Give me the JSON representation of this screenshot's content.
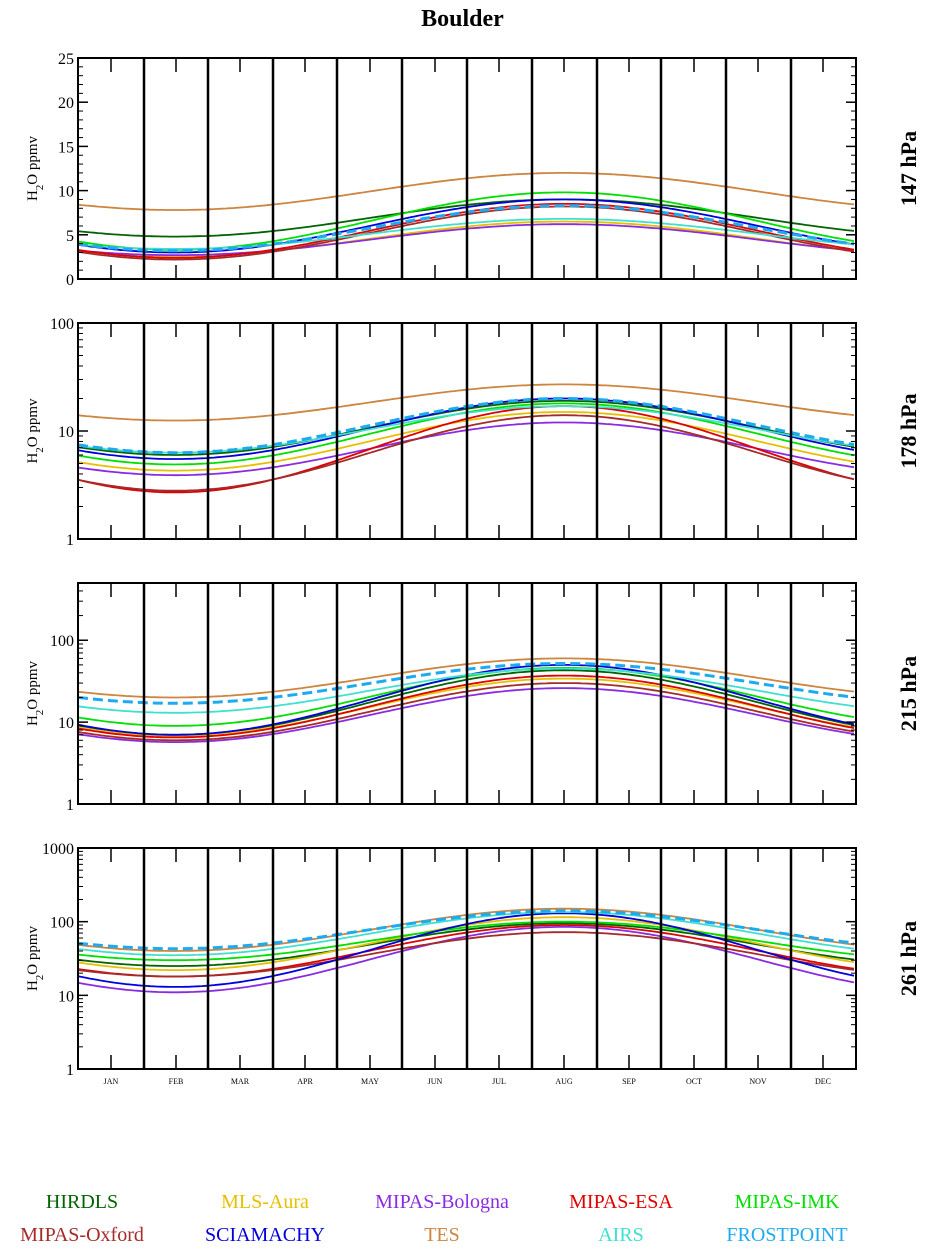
{
  "title": "Boulder",
  "months": [
    "JAN",
    "FEB",
    "MAR",
    "APR",
    "MAY",
    "JUN",
    "JUL",
    "AUG",
    "SEP",
    "OCT",
    "NOV",
    "DEC"
  ],
  "legend": [
    {
      "name": "HIRDLS",
      "color": "#006400"
    },
    {
      "name": "MLS-Aura",
      "color": "#e6c000"
    },
    {
      "name": "MIPAS-Bologna",
      "color": "#8a2be2"
    },
    {
      "name": "MIPAS-ESA",
      "color": "#e00000"
    },
    {
      "name": "MIPAS-IMK",
      "color": "#00e000"
    },
    {
      "name": "MIPAS-Oxford",
      "color": "#a52a2a"
    },
    {
      "name": "SCIAMACHY",
      "color": "#0000dd"
    },
    {
      "name": "TES",
      "color": "#cd853f"
    },
    {
      "name": "AIRS",
      "color": "#40e0d0"
    },
    {
      "name": "FROSTPOINT",
      "color": "#1eaaf0"
    }
  ],
  "chart_data": [
    {
      "type": "line",
      "pressure_label": "147 hPa",
      "ylabel": "H2O ppmv",
      "yscale": "linear",
      "ylim": [
        0,
        25
      ],
      "yticks": [
        "0",
        "5",
        "10",
        "15",
        "20",
        "25"
      ],
      "series": [
        {
          "name": "HIRDLS",
          "min": 4.8,
          "max": 9.0
        },
        {
          "name": "MLS-Aura",
          "min": 2.6,
          "max": 6.5
        },
        {
          "name": "MIPAS-Bologna",
          "min": 2.7,
          "max": 6.2
        },
        {
          "name": "MIPAS-ESA",
          "min": 2.4,
          "max": 8.5
        },
        {
          "name": "MIPAS-IMK",
          "min": 3.3,
          "max": 9.8
        },
        {
          "name": "MIPAS-Oxford",
          "min": 2.2,
          "max": 8.2
        },
        {
          "name": "SCIAMACHY",
          "min": 3.0,
          "max": 9.0
        },
        {
          "name": "TES",
          "min": 7.8,
          "max": 12.0
        },
        {
          "name": "AIRS",
          "min": 3.4,
          "max": 6.8
        },
        {
          "name": "FROSTPOINT",
          "min": 3.2,
          "max": 8.3
        }
      ]
    },
    {
      "type": "line",
      "pressure_label": "178 hPa",
      "ylabel": "H2O ppmv",
      "yscale": "log",
      "ylim": [
        1,
        100
      ],
      "yticks": [
        "1",
        "10",
        "100"
      ],
      "series": [
        {
          "name": "HIRDLS",
          "min": 6.0,
          "max": 19.0
        },
        {
          "name": "MLS-Aura",
          "min": 4.3,
          "max": 15.0
        },
        {
          "name": "MIPAS-Bologna",
          "min": 3.9,
          "max": 12.0
        },
        {
          "name": "MIPAS-ESA",
          "min": 2.7,
          "max": 17.0
        },
        {
          "name": "MIPAS-IMK",
          "min": 4.9,
          "max": 18.0
        },
        {
          "name": "MIPAS-Oxford",
          "min": 2.8,
          "max": 14.0
        },
        {
          "name": "SCIAMACHY",
          "min": 5.5,
          "max": 20.0
        },
        {
          "name": "TES",
          "min": 12.5,
          "max": 27.0
        },
        {
          "name": "AIRS",
          "min": 6.3,
          "max": 17.0
        },
        {
          "name": "FROSTPOINT",
          "min": 6.3,
          "max": 20.0
        }
      ]
    },
    {
      "type": "line",
      "pressure_label": "215 hPa",
      "ylabel": "H2O ppmv",
      "yscale": "log",
      "ylim": [
        1,
        500
      ],
      "yticks": [
        "1",
        "10",
        "100"
      ],
      "series": [
        {
          "name": "HIRDLS",
          "min": 7.0,
          "max": 43.0
        },
        {
          "name": "MLS-Aura",
          "min": 6.8,
          "max": 34.0
        },
        {
          "name": "MIPAS-Bologna",
          "min": 5.7,
          "max": 26.0
        },
        {
          "name": "MIPAS-ESA",
          "min": 6.5,
          "max": 37.0
        },
        {
          "name": "MIPAS-IMK",
          "min": 9.0,
          "max": 46.0
        },
        {
          "name": "MIPAS-Oxford",
          "min": 6.0,
          "max": 30.0
        },
        {
          "name": "SCIAMACHY",
          "min": 7.0,
          "max": 50.0
        },
        {
          "name": "TES",
          "min": 20.0,
          "max": 60.0
        },
        {
          "name": "AIRS",
          "min": 13.0,
          "max": 45.0
        },
        {
          "name": "FROSTPOINT",
          "min": 17.0,
          "max": 52.0
        }
      ]
    },
    {
      "type": "line",
      "pressure_label": "261 hPa",
      "ylabel": "H2O ppmv",
      "yscale": "log",
      "ylim": [
        1,
        1000
      ],
      "yticks": [
        "1",
        "10",
        "100",
        "1000"
      ],
      "series": [
        {
          "name": "HIRDLS",
          "min": 25.0,
          "max": 95.0
        },
        {
          "name": "MLS-Aura",
          "min": 22.0,
          "max": 115.0
        },
        {
          "name": "MIPAS-Bologna",
          "min": 11.0,
          "max": 85.0
        },
        {
          "name": "MIPAS-ESA",
          "min": 18.0,
          "max": 90.0
        },
        {
          "name": "MIPAS-IMK",
          "min": 30.0,
          "max": 100.0
        },
        {
          "name": "MIPAS-Oxford",
          "min": 18.0,
          "max": 72.0
        },
        {
          "name": "SCIAMACHY",
          "min": 13.0,
          "max": 130.0
        },
        {
          "name": "TES",
          "min": 40.0,
          "max": 150.0
        },
        {
          "name": "AIRS",
          "min": 35.0,
          "max": 135.0
        },
        {
          "name": "FROSTPOINT",
          "min": 43.0,
          "max": 140.0
        }
      ]
    }
  ]
}
